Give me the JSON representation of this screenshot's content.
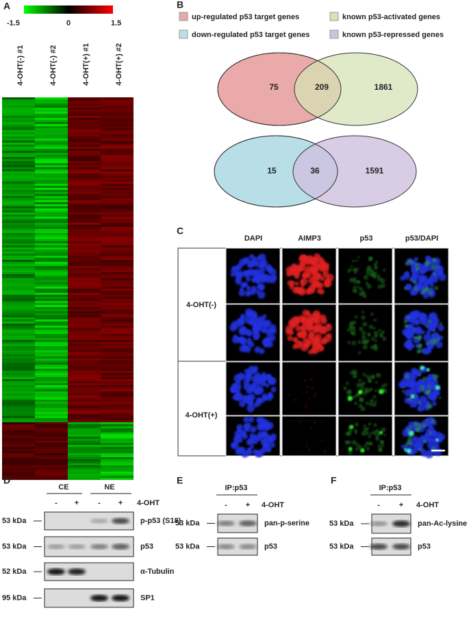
{
  "panel_a": {
    "letter": "A",
    "colorbar": {
      "min_label": "-1.5",
      "mid_label": "0",
      "max_label": "1.5"
    },
    "columns": [
      "4-OHT(-) #1",
      "4-OHT(-) #2",
      "4-OHT(+) #1",
      "4-OHT(+) #2"
    ]
  },
  "panel_b": {
    "letter": "B",
    "legend": [
      "up-regulated p53 target genes",
      "known p53-activated genes",
      "down-regulated p53 target genes",
      "known p53-repressed genes"
    ],
    "venns": [
      {
        "left": 75,
        "overlap": 209,
        "right": 1861
      },
      {
        "left": 15,
        "overlap": 36,
        "right": 1591
      }
    ]
  },
  "panel_c": {
    "letter": "C",
    "columns": [
      "DAPI",
      "AIMP3",
      "p53",
      "p53/DAPI"
    ],
    "rows": [
      "4-OHT(-)",
      "4-OHT(+)"
    ]
  },
  "panel_d": {
    "letter": "D",
    "groups": [
      "CE",
      "NE"
    ],
    "treatment": "4-OHT",
    "lanes": [
      "-",
      "+",
      "-",
      "+"
    ],
    "blots": [
      {
        "size": "53 kDa",
        "label": "p-p53 (S18)"
      },
      {
        "size": "53 kDa",
        "label": "p53"
      },
      {
        "size": "52 kDa",
        "label": "α-Tubulin"
      },
      {
        "size": "95 kDa",
        "label": "SP1"
      }
    ]
  },
  "panel_e": {
    "letter": "E",
    "ip": "IP:p53",
    "treatment": "4-OHT",
    "lanes": [
      "-",
      "+"
    ],
    "blots": [
      {
        "size": "53 kDa",
        "label": "pan-p-serine"
      },
      {
        "size": "53 kDa",
        "label": "p53"
      }
    ]
  },
  "panel_f": {
    "letter": "F",
    "ip": "IP:p53",
    "treatment": "4-OHT",
    "lanes": [
      "-",
      "+"
    ],
    "blots": [
      {
        "size": "53 kDa",
        "label": "pan-Ac-lysine"
      },
      {
        "size": "53 kDa",
        "label": "p53"
      }
    ]
  }
}
